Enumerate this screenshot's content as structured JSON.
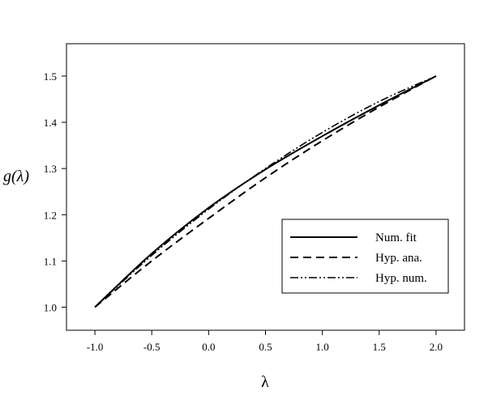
{
  "chart_data": {
    "type": "line",
    "xlabel": "λ",
    "ylabel": "g(λ)",
    "xlim": [
      -1.25,
      2.25
    ],
    "ylim": [
      0.95,
      1.57
    ],
    "xticks": [
      -1.0,
      -0.5,
      0.0,
      0.5,
      1.0,
      1.5,
      2.0
    ],
    "xtick_labels": [
      "-1.0",
      "-0.5",
      "0.0",
      "0.5",
      "1.0",
      "1.5",
      "2.0"
    ],
    "yticks": [
      1.0,
      1.1,
      1.2,
      1.3,
      1.4,
      1.5
    ],
    "ytick_labels": [
      "1.0",
      "1.1",
      "1.2",
      "1.3",
      "1.4",
      "1.5"
    ],
    "grid": false,
    "legend_position": "bottom-right",
    "series": [
      {
        "name": "Num. fit",
        "style": "solid",
        "x": [
          -1.0,
          -0.5,
          0.0,
          0.5,
          1.0,
          1.5,
          2.0
        ],
        "y": [
          1.0,
          1.116,
          1.215,
          1.298,
          1.37,
          1.437,
          1.5
        ]
      },
      {
        "name": "Hyp. ana.",
        "style": "dashed",
        "x": [
          -1.0,
          -0.5,
          0.0,
          0.5,
          1.0,
          1.5,
          2.0
        ],
        "y": [
          1.0,
          1.1,
          1.192,
          1.28,
          1.36,
          1.433,
          1.5
        ]
      },
      {
        "name": "Hyp. num.",
        "style": "dashdotdot",
        "x": [
          -1.0,
          -0.5,
          0.0,
          0.5,
          1.0,
          1.5,
          2.0
        ],
        "y": [
          1.0,
          1.112,
          1.212,
          1.3,
          1.378,
          1.445,
          1.5
        ]
      }
    ]
  }
}
